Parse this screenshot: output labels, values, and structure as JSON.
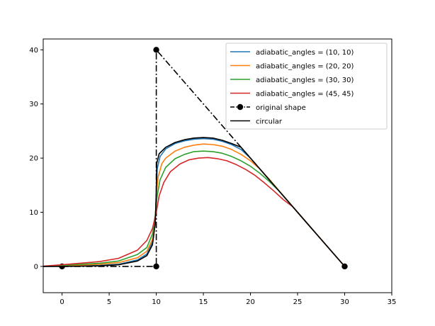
{
  "chart_data": {
    "type": "line",
    "title": "",
    "xlabel": "",
    "ylabel": "",
    "xlim": [
      -2,
      35
    ],
    "ylim": [
      -4.85,
      42
    ],
    "xticks": [
      0,
      5,
      10,
      15,
      20,
      25,
      30,
      35
    ],
    "yticks": [
      0,
      10,
      20,
      30,
      40
    ],
    "grid": false,
    "legend_position": "top-right",
    "series": [
      {
        "name": "adiabatic_angles = (10, 10)",
        "color": "#1f77b4",
        "style": "solid",
        "marker": false,
        "x": [
          -2,
          0,
          4,
          6,
          8,
          9,
          9.6,
          9.9,
          10,
          10.1,
          10.4,
          11,
          12,
          13,
          14,
          15,
          16,
          17,
          18,
          19,
          20,
          22,
          24,
          26,
          28,
          30
        ],
        "y": [
          0,
          0.05,
          0.2,
          0.4,
          1.2,
          2.3,
          4.5,
          8.5,
          13,
          18,
          20.3,
          21.7,
          22.7,
          23.2,
          23.5,
          23.6,
          23.5,
          23.1,
          22.5,
          21.6,
          20,
          16,
          12,
          8,
          4,
          0
        ]
      },
      {
        "name": "adiabatic_angles = (20, 20)",
        "color": "#ff7f0e",
        "style": "solid",
        "marker": false,
        "x": [
          -2,
          0,
          4,
          6,
          8,
          9,
          9.6,
          9.9,
          10,
          10.2,
          10.6,
          11,
          12,
          13,
          14,
          15,
          16,
          17,
          18,
          19,
          20,
          21,
          22,
          24,
          26,
          28,
          30
        ],
        "y": [
          0,
          0.1,
          0.4,
          0.7,
          1.6,
          2.8,
          5,
          9,
          13,
          16.5,
          19,
          20,
          21.3,
          22,
          22.4,
          22.6,
          22.5,
          22.2,
          21.6,
          20.7,
          19.5,
          18,
          16.1,
          12,
          8,
          4,
          0
        ]
      },
      {
        "name": "adiabatic_angles = (30, 30)",
        "color": "#2ca02c",
        "style": "solid",
        "marker": false,
        "x": [
          -2,
          0,
          4,
          6,
          8,
          9,
          9.6,
          9.9,
          10.1,
          10.4,
          11,
          12,
          13,
          14,
          15,
          16,
          17,
          18,
          19,
          20,
          21,
          22,
          23,
          24,
          26,
          28,
          30
        ],
        "y": [
          0,
          0.2,
          0.6,
          1,
          2.2,
          3.5,
          6,
          9.5,
          13,
          16,
          18.3,
          19.9,
          20.7,
          21.2,
          21.3,
          21.2,
          20.9,
          20.3,
          19.5,
          18.5,
          17.2,
          15.7,
          14,
          12,
          8,
          4,
          0
        ]
      },
      {
        "name": "adiabatic_angles = (45, 45)",
        "color": "#d62728",
        "style": "solid",
        "marker": false,
        "x": [
          -2,
          0,
          4,
          6,
          8,
          9,
          9.6,
          10,
          10.3,
          10.8,
          11.5,
          12.5,
          13.5,
          14.5,
          15.5,
          16.5,
          17.5,
          18.5,
          19.5,
          20.5,
          21.5,
          22.5,
          23.5,
          24.5,
          26,
          28,
          30
        ],
        "y": [
          0.05,
          0.3,
          0.9,
          1.5,
          3,
          4.8,
          7,
          10,
          13,
          15.5,
          17.5,
          18.9,
          19.7,
          20,
          20.1,
          19.9,
          19.5,
          18.8,
          17.9,
          16.8,
          15.4,
          13.9,
          12.3,
          11,
          8,
          4,
          0
        ]
      },
      {
        "name": "original shape",
        "color": "#000000",
        "style": "dashdot",
        "marker": true,
        "x": [
          0,
          10,
          10,
          30
        ],
        "y": [
          0,
          0,
          40,
          0
        ]
      },
      {
        "name": "circular",
        "color": "#000000",
        "style": "solid",
        "marker": false,
        "x": [
          -2,
          0,
          4,
          6,
          8,
          9,
          9.6,
          9.9,
          10,
          10.05,
          10.3,
          11,
          12,
          13,
          14,
          15,
          16,
          17,
          18,
          19,
          20,
          22,
          24,
          26,
          28,
          30
        ],
        "y": [
          0,
          0,
          0.1,
          0.3,
          1,
          2,
          4,
          8,
          14,
          19,
          20.8,
          22,
          22.9,
          23.4,
          23.7,
          23.8,
          23.7,
          23.3,
          22.7,
          22,
          20,
          16,
          12,
          8,
          4,
          0
        ]
      }
    ]
  }
}
